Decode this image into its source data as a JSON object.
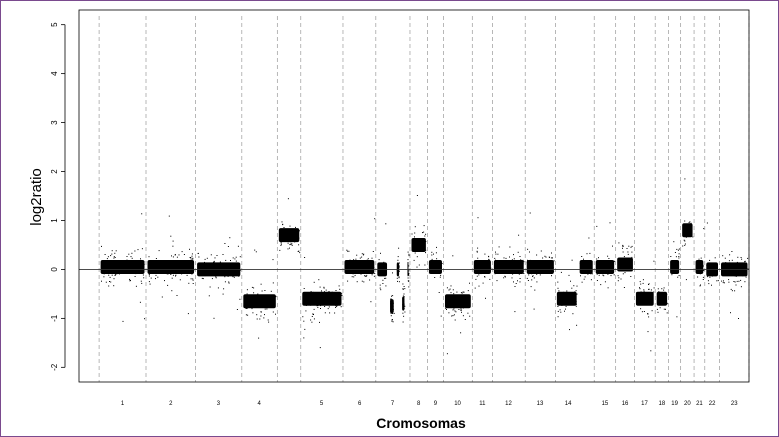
{
  "chart_data": {
    "type": "scatter",
    "title": "",
    "xlabel": "Cromosomas",
    "ylabel": "log2ratio",
    "ylim": [
      -2.3,
      5.3
    ],
    "y_ticks": [
      "5",
      "4",
      "3",
      "2",
      "1",
      "0",
      "-1",
      "-2"
    ],
    "y_tick_values": [
      5,
      4,
      3,
      2,
      1,
      0,
      -1,
      -2
    ],
    "baseline": 0,
    "x_range": [
      0,
      100
    ],
    "chromosome_boundaries": [
      3,
      10,
      17.4,
      24.3,
      29.6,
      33.1,
      39.4,
      44.3,
      49.4,
      52,
      54.4,
      58.7,
      61.7,
      66.6,
      71.1,
      76.9,
      80.1,
      82.9,
      86,
      88,
      89.8,
      91.8,
      93.4,
      95.6,
      100
    ],
    "chromosomes": [
      {
        "label": "1",
        "segments": [
          {
            "x": [
              3,
              10
            ],
            "y": 0.05
          }
        ]
      },
      {
        "label": "2",
        "segments": [
          {
            "x": [
              10,
              17.4
            ],
            "y": 0.05
          }
        ]
      },
      {
        "label": "3",
        "segments": [
          {
            "x": [
              17.4,
              24.3
            ],
            "y": 0.0
          }
        ]
      },
      {
        "label": "4",
        "segments": [
          {
            "x": [
              24.3,
              29.6
            ],
            "y": -0.65
          }
        ]
      },
      {
        "label": "",
        "segments": [
          {
            "x": [
              29.6,
              33.1
            ],
            "y": 0.7
          }
        ]
      },
      {
        "label": "5",
        "segments": [
          {
            "x": [
              33.1,
              39.4
            ],
            "y": -0.6
          }
        ]
      },
      {
        "label": "6",
        "segments": [
          {
            "x": [
              39.4,
              44.3
            ],
            "y": 0.05
          }
        ]
      },
      {
        "label": "7",
        "segments": [
          {
            "x": [
              44.3,
              46.2
            ],
            "y": 0.0
          },
          {
            "x": [
              46.2,
              47.2
            ],
            "y": -0.75
          },
          {
            "x": [
              47.2,
              48.0
            ],
            "y": 0.0
          },
          {
            "x": [
              48.0,
              48.8
            ],
            "y": -0.7
          },
          {
            "x": [
              48.8,
              49.4
            ],
            "y": 0.0
          }
        ]
      },
      {
        "label": "8",
        "segments": [
          {
            "x": [
              49.4,
              52
            ],
            "y": 0.5
          }
        ]
      },
      {
        "label": "9",
        "segments": [
          {
            "x": [
              52,
              54.4
            ],
            "y": 0.05
          }
        ]
      },
      {
        "label": "10",
        "segments": [
          {
            "x": [
              54.4,
              58.7
            ],
            "y": -0.65
          }
        ]
      },
      {
        "label": "11",
        "segments": [
          {
            "x": [
              58.7,
              61.7
            ],
            "y": 0.05
          }
        ]
      },
      {
        "label": "12",
        "segments": [
          {
            "x": [
              61.7,
              66.6
            ],
            "y": 0.05
          }
        ]
      },
      {
        "label": "13",
        "segments": [
          {
            "x": [
              66.6,
              71.1
            ],
            "y": 0.05
          }
        ]
      },
      {
        "label": "14",
        "segments": [
          {
            "x": [
              71.1,
              74.5
            ],
            "y": -0.6
          },
          {
            "x": [
              74.5,
              76.9
            ],
            "y": 0.05
          }
        ]
      },
      {
        "label": "15",
        "segments": [
          {
            "x": [
              76.9,
              80.1
            ],
            "y": 0.05
          }
        ]
      },
      {
        "label": "16",
        "segments": [
          {
            "x": [
              80.1,
              82.9
            ],
            "y": 0.1
          }
        ]
      },
      {
        "label": "17",
        "segments": [
          {
            "x": [
              82.9,
              86
            ],
            "y": -0.6
          }
        ]
      },
      {
        "label": "18",
        "segments": [
          {
            "x": [
              86,
              88
            ],
            "y": -0.6
          }
        ]
      },
      {
        "label": "19",
        "segments": [
          {
            "x": [
              88,
              89.8
            ],
            "y": 0.05
          }
        ]
      },
      {
        "label": "20",
        "segments": [
          {
            "x": [
              89.8,
              91.8
            ],
            "y": 0.8
          }
        ]
      },
      {
        "label": "21",
        "segments": [
          {
            "x": [
              91.8,
              93.4
            ],
            "y": 0.05
          }
        ]
      },
      {
        "label": "22",
        "segments": [
          {
            "x": [
              93.4,
              95.6
            ],
            "y": 0.0
          }
        ]
      },
      {
        "label": "23",
        "segments": [
          {
            "x": [
              95.6,
              100
            ],
            "y": 0.0
          }
        ]
      }
    ],
    "label_positions": [
      {
        "label": "1",
        "x": 6.5
      },
      {
        "label": "2",
        "x": 13.7
      },
      {
        "label": "3",
        "x": 20.8
      },
      {
        "label": "4",
        "x": 26.9
      },
      {
        "label": "5",
        "x": 36.2
      },
      {
        "label": "6",
        "x": 41.9
      },
      {
        "label": "7",
        "x": 46.8
      },
      {
        "label": "8",
        "x": 50.7
      },
      {
        "label": "9",
        "x": 53.2
      },
      {
        "label": "10",
        "x": 56.5
      },
      {
        "label": "11",
        "x": 60.2
      },
      {
        "label": "12",
        "x": 64.1
      },
      {
        "label": "13",
        "x": 68.8
      },
      {
        "label": "14",
        "x": 73.0
      },
      {
        "label": "15",
        "x": 78.5
      },
      {
        "label": "16",
        "x": 81.5
      },
      {
        "label": "17",
        "x": 84.4
      },
      {
        "label": "18",
        "x": 87.0
      },
      {
        "label": "19",
        "x": 88.9
      },
      {
        "label": "20",
        "x": 90.8
      },
      {
        "label": "21",
        "x": 92.6
      },
      {
        "label": "22",
        "x": 94.5
      },
      {
        "label": "23",
        "x": 97.8
      }
    ],
    "grid": false,
    "colors": {
      "points": "#000000",
      "baseline": "#333333",
      "boundary": "#999999",
      "frame": "#7a4a8e"
    }
  }
}
